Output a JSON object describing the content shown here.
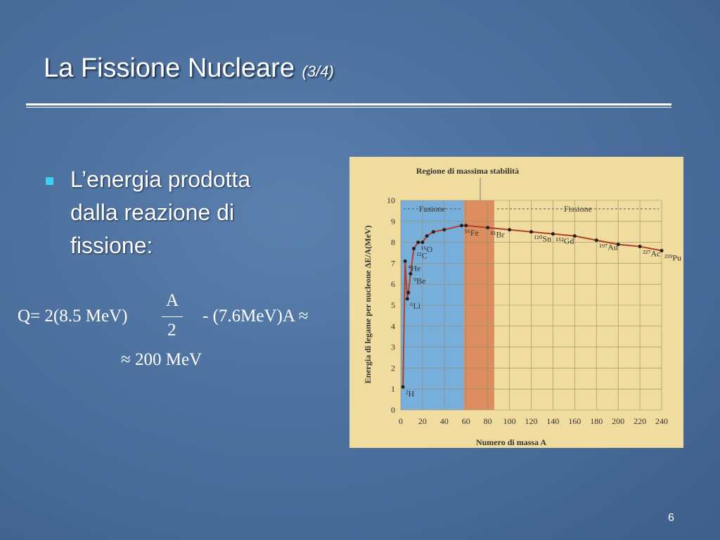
{
  "slide": {
    "title": "La Fissione Nucleare",
    "subtitle": "(3/4)",
    "bullet": [
      "L’energia prodotta",
      "dalla reazione di",
      "fissione:"
    ],
    "formula": {
      "left": "Q= 2(8.5 MeV)",
      "numerator": "A",
      "denominator": "2",
      "right": "- (7.6MeV)A ≈",
      "result": "≈ 200 MeV"
    },
    "page_number": "6"
  },
  "figure": {
    "type": "line",
    "title": "Regione di massima stabilità",
    "x_label": "Numero di massa A",
    "y_label": "Energia di legame per nucleone ΔE/A(MeV)",
    "xlim": [
      0,
      240
    ],
    "ylim": [
      0,
      10
    ],
    "xticks": [
      0,
      20,
      40,
      60,
      80,
      100,
      120,
      140,
      160,
      180,
      200,
      220,
      240
    ],
    "yticks": [
      0,
      1,
      2,
      3,
      4,
      5,
      6,
      7,
      8,
      9,
      10
    ],
    "grid": true,
    "regions": [
      {
        "name": "Fusione",
        "from": 0,
        "to": 58,
        "color": "#6aa8e0"
      },
      {
        "name": null,
        "from": 58,
        "to": 86,
        "color": "#d9855a"
      },
      {
        "name": "Fissione",
        "from": 86,
        "to": 240,
        "color": null
      }
    ],
    "series": {
      "color": "#b0402a",
      "x": [
        2,
        4,
        6,
        7,
        9,
        12,
        16,
        20,
        24,
        30,
        40,
        56,
        60,
        80,
        100,
        120,
        140,
        160,
        180,
        200,
        220,
        240
      ],
      "values": [
        1.1,
        7.1,
        5.3,
        5.6,
        6.5,
        7.7,
        8.0,
        8.0,
        8.3,
        8.5,
        8.6,
        8.8,
        8.8,
        8.7,
        8.6,
        8.5,
        8.4,
        8.3,
        8.1,
        7.9,
        7.8,
        7.6
      ],
      "labels": [
        "²H",
        "⁴He",
        "⁶Li",
        null,
        "⁹Be",
        "¹²C",
        "¹⁶O",
        null,
        null,
        null,
        null,
        "⁵⁶Fe",
        null,
        "⁸¹Br",
        null,
        "¹²⁰Sn",
        "¹⁵²Gd",
        null,
        "¹⁹⁷Au",
        null,
        "²²⁷Ac",
        "²³⁹Pu"
      ]
    }
  }
}
